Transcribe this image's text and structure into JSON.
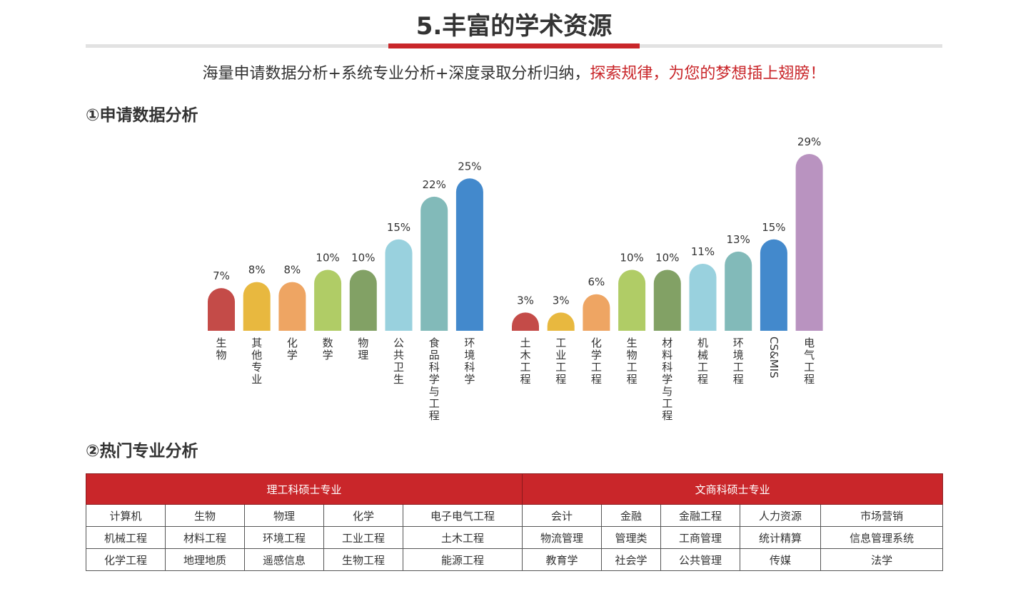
{
  "header": {
    "title": "5.丰富的学术资源",
    "subtitle_main": "海量申请数据分析+系统专业分析+深度录取分析归纳，",
    "subtitle_highlight": "探索规律，为您的梦想插上翅膀！"
  },
  "section1": {
    "title": "①申请数据分析"
  },
  "section2": {
    "title": "②热门专业分析"
  },
  "chart_data": [
    {
      "type": "bar",
      "categories": [
        "生物",
        "其他专业",
        "化学",
        "数学",
        "物理",
        "公共卫生",
        "食品科学与工程",
        "环境科学"
      ],
      "values": [
        7,
        8,
        8,
        10,
        10,
        15,
        22,
        25
      ],
      "value_labels": [
        "7%",
        "8%",
        "8%",
        "10%",
        "10%",
        "15%",
        "22%",
        "25%"
      ],
      "colors": [
        "#c44b48",
        "#e8b83f",
        "#eea563",
        "#b0cc66",
        "#82a165",
        "#99d1de",
        "#82bab9",
        "#4389cc"
      ],
      "unit": "%",
      "ylim": [
        0,
        29
      ],
      "grid": false
    },
    {
      "type": "bar",
      "categories": [
        "土木工程",
        "工业工程",
        "化学工程",
        "生物工程",
        "材料科学与工程",
        "机械工程",
        "环境工程",
        "CS&MIS",
        "电气工程"
      ],
      "values": [
        3,
        3,
        6,
        10,
        10,
        11,
        13,
        15,
        29
      ],
      "value_labels": [
        "3%",
        "3%",
        "6%",
        "10%",
        "10%",
        "11%",
        "13%",
        "15%",
        "29%"
      ],
      "colors": [
        "#c44b48",
        "#e8b83f",
        "#eea563",
        "#b0cc66",
        "#82a165",
        "#99d1de",
        "#82bab9",
        "#4389cc",
        "#b993c0"
      ],
      "unit": "%",
      "ylim": [
        0,
        29
      ],
      "grid": false
    }
  ],
  "table": {
    "header_science": "理工科硕士专业",
    "header_arts": "文商科硕士专业",
    "rows": [
      [
        "计算机",
        "生物",
        "物理",
        "化学",
        "电子电气工程",
        "会计",
        "金融",
        "金融工程",
        "人力资源",
        "市场营销"
      ],
      [
        "机械工程",
        "材料工程",
        "环境工程",
        "工业工程",
        "土木工程",
        "物流管理",
        "管理类",
        "工商管理",
        "统计精算",
        "信息管理系统"
      ],
      [
        "化学工程",
        "地理地质",
        "遥感信息",
        "生物工程",
        "能源工程",
        "教育学",
        "社会学",
        "公共管理",
        "传媒",
        "法学"
      ]
    ]
  }
}
